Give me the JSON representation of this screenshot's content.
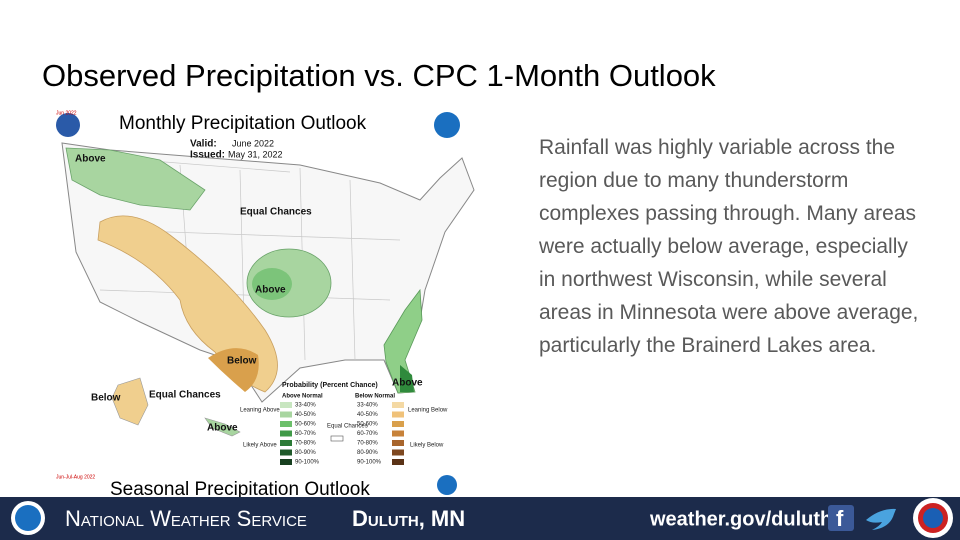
{
  "slide": {
    "title": "Observed Precipitation vs. CPC 1-Month Outlook",
    "body": "Rainfall was highly variable across the region due to many thunderstorm complexes passing through. Many areas were actually below average, especially in northwest Wisconsin, while several areas in Minnesota were above average, particularly the Brainerd Lakes area.",
    "map": {
      "corner_note": "Jun 2022",
      "title": "Monthly Precipitation Outlook",
      "valid_label": "Valid:",
      "valid": "June 2022",
      "issued_label": "Issued:",
      "issued": "May 31, 2022",
      "labels": [
        "Above",
        "Equal Chances",
        "Above",
        "Below",
        "Above",
        "Below",
        "Equal Chances",
        "Above"
      ],
      "legend": {
        "title": "Probability (Percent Chance)",
        "above_normal": "Above Normal",
        "below_normal": "Below Normal",
        "above_levels": [
          "33-40%",
          "40-50%",
          "50-60%",
          "60-70%",
          "70-80%",
          "80-90%",
          "90-100%"
        ],
        "below_levels": [
          "33-40%",
          "40-50%",
          "50-60%",
          "60-70%",
          "70-80%",
          "80-90%",
          "90-100%"
        ],
        "leaning_above": "Leaning Above",
        "likely_above": "Likely Above",
        "equal_chances": "Equal Chances",
        "leaning_below": "Leaning Below",
        "likely_below": "Likely Below"
      },
      "bottom_note": "Jun-Jul-Aug 2022",
      "next_title": "Seasonal Precipitation Outlook"
    },
    "footer": {
      "agency": "National Weather Service",
      "office": "Duluth, MN",
      "url": "weather.gov/duluth"
    }
  }
}
